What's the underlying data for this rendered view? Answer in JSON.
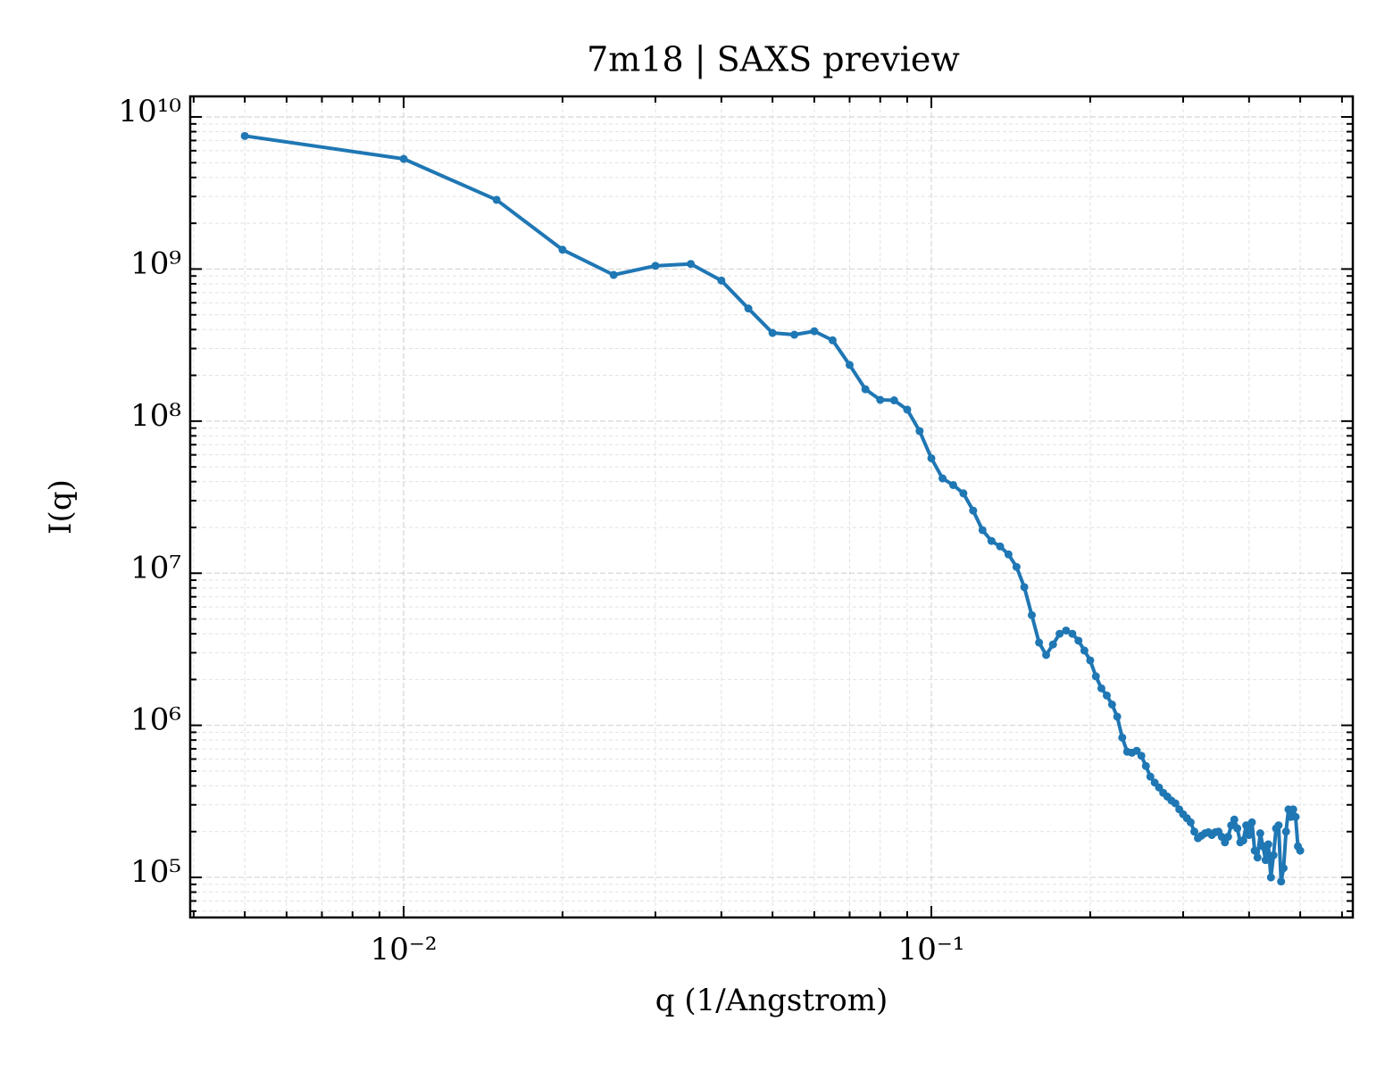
{
  "chart_data": {
    "type": "line",
    "title": "7m18 | SAXS preview",
    "xlabel": "q (1/Angstrom)",
    "ylabel": "I(q)",
    "xscale": "log",
    "yscale": "log",
    "grid": true,
    "xlim": [
      0.00394,
      0.629
    ],
    "ylim": [
      54500,
      13650000000
    ],
    "xticks": [
      {
        "value": 0.01,
        "label": "10⁻²"
      },
      {
        "value": 0.1,
        "label": "10⁻¹"
      }
    ],
    "yticks": [
      {
        "value": 100000,
        "label": "10⁵"
      },
      {
        "value": 1000000,
        "label": "10⁶"
      },
      {
        "value": 10000000,
        "label": "10⁷"
      },
      {
        "value": 100000000,
        "label": "10⁸"
      },
      {
        "value": 1000000000,
        "label": "10⁹"
      },
      {
        "value": 10000000000,
        "label": "10¹⁰"
      }
    ],
    "xticks_minor": [
      0.004,
      0.005,
      0.006,
      0.007,
      0.008,
      0.009,
      0.02,
      0.03,
      0.04,
      0.05,
      0.06,
      0.07,
      0.08,
      0.09,
      0.2,
      0.3,
      0.4,
      0.5,
      0.6
    ],
    "yticks_minor": [
      60000,
      70000,
      80000,
      90000,
      200000,
      300000,
      400000,
      500000,
      600000,
      700000,
      800000,
      900000,
      2000000,
      3000000,
      4000000,
      5000000,
      6000000,
      7000000,
      8000000,
      9000000,
      20000000,
      30000000,
      40000000,
      50000000,
      60000000,
      70000000,
      80000000,
      90000000,
      200000000,
      300000000,
      400000000,
      500000000,
      600000000,
      700000000,
      800000000,
      900000000,
      2000000000,
      3000000000,
      4000000000,
      5000000000,
      6000000000,
      7000000000,
      8000000000,
      9000000000
    ],
    "x": [
      0.005,
      0.01,
      0.015,
      0.02,
      0.025,
      0.03,
      0.035,
      0.04,
      0.045,
      0.05,
      0.055,
      0.06,
      0.065,
      0.07,
      0.075,
      0.08,
      0.085,
      0.09,
      0.095,
      0.1,
      0.105,
      0.11,
      0.115,
      0.12,
      0.125,
      0.13,
      0.135,
      0.14,
      0.145,
      0.15,
      0.155,
      0.16,
      0.165,
      0.17,
      0.175,
      0.18,
      0.185,
      0.19,
      0.195,
      0.2,
      0.205,
      0.21,
      0.215,
      0.22,
      0.225,
      0.23,
      0.235,
      0.24,
      0.245,
      0.25,
      0.255,
      0.26,
      0.265,
      0.27,
      0.275,
      0.28,
      0.285,
      0.29,
      0.295,
      0.3,
      0.305,
      0.31,
      0.315,
      0.32,
      0.325,
      0.33,
      0.335,
      0.34,
      0.345,
      0.35,
      0.355,
      0.36,
      0.365,
      0.37,
      0.375,
      0.38,
      0.385,
      0.39,
      0.395,
      0.4,
      0.405,
      0.41,
      0.415,
      0.42,
      0.425,
      0.43,
      0.435,
      0.44,
      0.445,
      0.45,
      0.455,
      0.46,
      0.465,
      0.47,
      0.475,
      0.48,
      0.485,
      0.49,
      0.495,
      0.5
    ],
    "series": [
      {
        "color": "#1f77b4",
        "values": [
          7500000000,
          5300000000,
          2850000000,
          1340000000,
          915000000,
          1050000000,
          1080000000,
          840000000,
          550000000,
          380000000,
          370000000,
          390000000,
          340000000,
          234000000,
          162000000,
          138000000,
          137000000,
          119000000,
          86000000,
          57000000,
          42000000,
          38000000,
          33500000,
          25800000,
          19200000,
          16300000,
          15000000,
          13300000,
          11000000,
          8100000,
          5300000,
          3500000,
          2900000,
          3400000,
          4000000,
          4200000,
          4000000,
          3600000,
          3100000,
          2670000,
          2100000,
          1750000,
          1570000,
          1370000,
          1140000,
          830000,
          670000,
          660000,
          680000,
          630000,
          540000,
          460000,
          420000,
          390000,
          360000,
          340000,
          320000,
          307000,
          280000,
          260000,
          245000,
          230000,
          200000,
          181000,
          188000,
          195000,
          198000,
          190000,
          198000,
          200000,
          185000,
          170000,
          185000,
          220000,
          240000,
          210000,
          170000,
          175000,
          220000,
          190000,
          230000,
          150000,
          135000,
          195000,
          160000,
          130000,
          165000,
          100000,
          140000,
          210000,
          220000,
          94000,
          115000,
          200000,
          280000,
          250000,
          280000,
          250000,
          160000,
          150000
        ]
      }
    ]
  }
}
